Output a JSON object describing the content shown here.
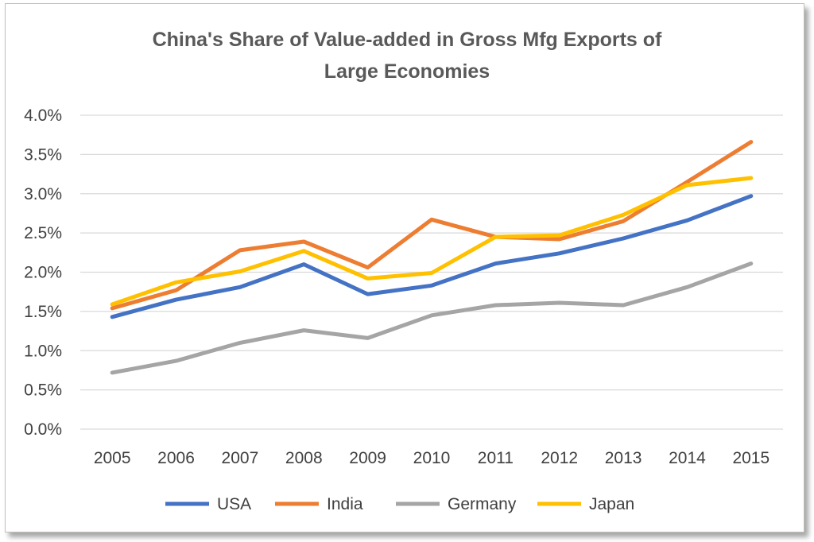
{
  "chart_data": {
    "type": "line",
    "title_lines": [
      "China's Share of Value-added in Gross Mfg Exports of",
      "Large Economies"
    ],
    "xlabel": "",
    "ylabel": "",
    "categories": [
      "2005",
      "2006",
      "2007",
      "2008",
      "2009",
      "2010",
      "2011",
      "2012",
      "2013",
      "2014",
      "2015"
    ],
    "y_ticks": [
      "0.0%",
      "0.5%",
      "1.0%",
      "1.5%",
      "2.0%",
      "2.5%",
      "3.0%",
      "3.5%",
      "4.0%"
    ],
    "ylim": [
      0,
      4.0
    ],
    "grid": true,
    "legend_position": "bottom",
    "series": [
      {
        "name": "USA",
        "color": "#4472c4",
        "values": [
          1.43,
          1.65,
          1.81,
          2.1,
          1.72,
          1.83,
          2.11,
          2.24,
          2.43,
          2.66,
          2.97
        ]
      },
      {
        "name": "India",
        "color": "#ed7d31",
        "values": [
          1.54,
          1.77,
          2.28,
          2.39,
          2.06,
          2.67,
          2.45,
          2.42,
          2.65,
          3.15,
          3.66
        ]
      },
      {
        "name": "Germany",
        "color": "#a5a5a5",
        "values": [
          0.72,
          0.87,
          1.1,
          1.26,
          1.16,
          1.45,
          1.58,
          1.61,
          1.58,
          1.81,
          2.11
        ]
      },
      {
        "name": "Japan",
        "color": "#ffc000",
        "values": [
          1.59,
          1.87,
          2.01,
          2.27,
          1.92,
          1.99,
          2.45,
          2.47,
          2.73,
          3.11,
          3.2
        ]
      }
    ]
  }
}
